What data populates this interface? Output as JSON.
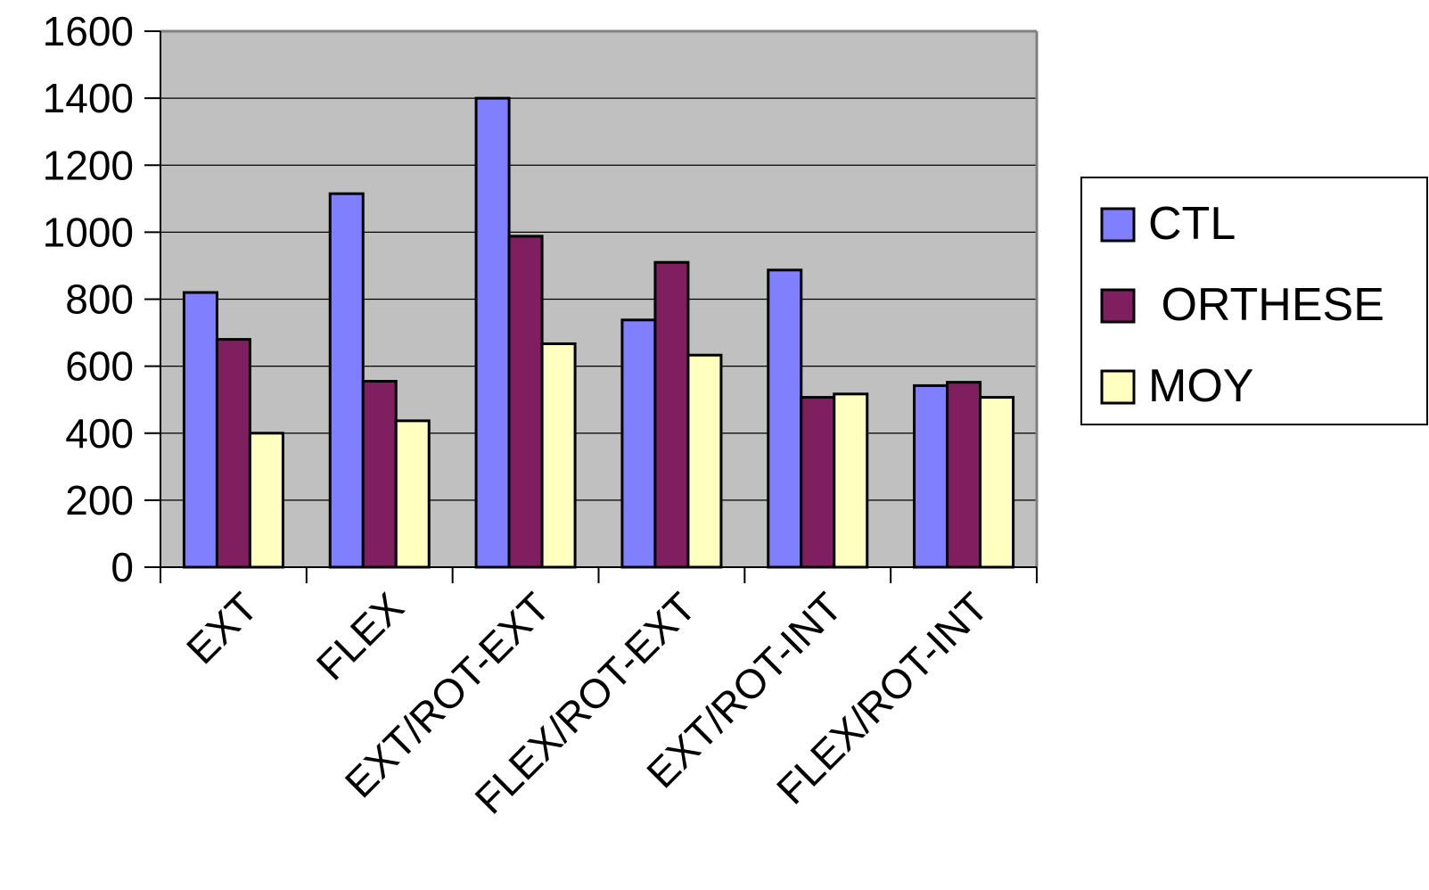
{
  "chart_data": {
    "type": "bar",
    "title": "",
    "xlabel": "",
    "ylabel": "",
    "categories": [
      "EXT",
      "FLEX",
      "EXT/ROT-EXT",
      "FLEX/ROT-EXT",
      "EXT/ROT-INT",
      "FLEX/ROT-INT"
    ],
    "series": [
      {
        "name": "CTL",
        "color": "#8080FF",
        "values": [
          820,
          1115,
          1400,
          738,
          887,
          542
        ]
      },
      {
        "name": " ORTHESE",
        "color": "#7F1F5F",
        "values": [
          680,
          555,
          988,
          910,
          507,
          552
        ]
      },
      {
        "name": "MOY",
        "color": "#FFFFC0",
        "values": [
          400,
          437,
          667,
          633,
          517,
          507
        ]
      }
    ],
    "ylim": [
      0,
      1600
    ],
    "yticks": [
      0,
      200,
      400,
      600,
      800,
      1000,
      1200,
      1400,
      1600
    ],
    "grid": true,
    "plot_background": "#C0C0C0",
    "legend": "right"
  }
}
